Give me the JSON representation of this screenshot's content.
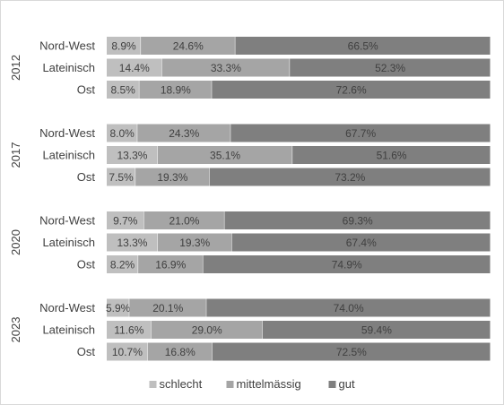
{
  "chart_data": {
    "type": "bar",
    "orientation": "horizontal",
    "stacked": true,
    "percent_stacked": true,
    "groups": [
      {
        "label": "2012",
        "rows": [
          {
            "category": "Nord-West",
            "values": [
              8.9,
              24.6,
              66.5
            ],
            "labels": [
              "8.9%",
              "24.6%",
              "66.5%"
            ]
          },
          {
            "category": "Lateinisch",
            "values": [
              14.4,
              33.3,
              52.3
            ],
            "labels": [
              "14.4%",
              "33.3%",
              "52.3%"
            ]
          },
          {
            "category": "Ost",
            "values": [
              8.5,
              18.9,
              72.6
            ],
            "labels": [
              "8.5%",
              "18.9%",
              "72.6%"
            ]
          }
        ]
      },
      {
        "label": "2017",
        "rows": [
          {
            "category": "Nord-West",
            "values": [
              8.0,
              24.3,
              67.7
            ],
            "labels": [
              "8.0%",
              "24.3%",
              "67.7%"
            ]
          },
          {
            "category": "Lateinisch",
            "values": [
              13.3,
              35.1,
              51.6
            ],
            "labels": [
              "13.3%",
              "35.1%",
              "51.6%"
            ]
          },
          {
            "category": "Ost",
            "values": [
              7.5,
              19.3,
              73.2
            ],
            "labels": [
              "7.5%",
              "19.3%",
              "73.2%"
            ]
          }
        ]
      },
      {
        "label": "2020",
        "rows": [
          {
            "category": "Nord-West",
            "values": [
              9.7,
              21.0,
              69.3
            ],
            "labels": [
              "9.7%",
              "21.0%",
              "69.3%"
            ]
          },
          {
            "category": "Lateinisch",
            "values": [
              13.3,
              19.3,
              67.4
            ],
            "labels": [
              "13.3%",
              "19.3%",
              "67.4%"
            ]
          },
          {
            "category": "Ost",
            "values": [
              8.2,
              16.9,
              74.9
            ],
            "labels": [
              "8.2%",
              "16.9%",
              "74.9%"
            ]
          }
        ]
      },
      {
        "label": "2023",
        "rows": [
          {
            "category": "Nord-West",
            "values": [
              5.9,
              20.1,
              74.0
            ],
            "labels": [
              "5.9%",
              "20.1%",
              "74.0%"
            ]
          },
          {
            "category": "Lateinisch",
            "values": [
              11.6,
              29.0,
              59.4
            ],
            "labels": [
              "11.6%",
              "29.0%",
              "59.4%"
            ]
          },
          {
            "category": "Ost",
            "values": [
              10.7,
              16.8,
              72.5
            ],
            "labels": [
              "10.7%",
              "16.8%",
              "72.5%"
            ]
          }
        ]
      }
    ],
    "series": [
      {
        "name": "schlecht",
        "color": "#bfbfbf"
      },
      {
        "name": "mittelmässig",
        "color": "#a5a5a5"
      },
      {
        "name": "gut",
        "color": "#7f7f7f"
      }
    ],
    "xlim": [
      0,
      100
    ],
    "grid": false,
    "legend_position": "bottom",
    "label_color": "#404040",
    "title": "",
    "xlabel": "",
    "ylabel": ""
  }
}
